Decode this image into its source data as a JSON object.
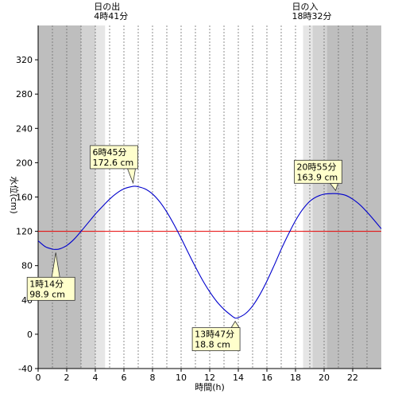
{
  "chart_data": {
    "type": "line",
    "xlabel": "時間(h)",
    "ylabel": "水位(cm)",
    "xlim": [
      0,
      24
    ],
    "ylim": [
      -40,
      360
    ],
    "x_ticks": [
      0,
      2,
      4,
      6,
      8,
      10,
      12,
      14,
      16,
      18,
      20,
      22
    ],
    "y_ticks": [
      -40,
      0,
      40,
      80,
      120,
      160,
      200,
      240,
      280,
      320
    ],
    "grid": {
      "vertical_dotted_every_hour": true,
      "horizontal": false
    },
    "night_shading": [
      {
        "from": 0,
        "to": 3.0,
        "shade": "dark"
      },
      {
        "from": 3.0,
        "to": 4.0,
        "shade": "medium"
      },
      {
        "from": 4.0,
        "to": 4.68,
        "shade": "light"
      },
      {
        "from": 18.53,
        "to": 19.2,
        "shade": "light"
      },
      {
        "from": 19.2,
        "to": 20.2,
        "shade": "medium"
      },
      {
        "from": 20.2,
        "to": 24,
        "shade": "dark"
      }
    ],
    "sun_labels": [
      {
        "label": "日の出",
        "time": "4時41分",
        "x": 4.68
      },
      {
        "label": "日の入",
        "time": "18時32分",
        "x": 18.53
      }
    ],
    "reference_line": {
      "y": 120,
      "color": "#e60000"
    },
    "series": [
      {
        "color": "#0000cc",
        "x": [
          0,
          0.5,
          1.0,
          1.233,
          1.5,
          2,
          2.5,
          3,
          3.5,
          4,
          4.5,
          5,
          5.5,
          6,
          6.5,
          6.75,
          7,
          7.5,
          8,
          8.5,
          9,
          9.5,
          10,
          10.5,
          11,
          11.5,
          12,
          12.5,
          13,
          13.5,
          13.783,
          14,
          14.5,
          15,
          15.5,
          16,
          16.5,
          17,
          17.5,
          18,
          18.5,
          19,
          19.5,
          20,
          20.5,
          20.917,
          21.5,
          22,
          22.5,
          23,
          23.5,
          24
        ],
        "y": [
          109,
          102.1,
          99.2,
          98.9,
          99.5,
          103.5,
          110.5,
          120,
          130,
          140,
          149,
          157.5,
          164.5,
          169.5,
          172,
          172.6,
          172,
          169.3,
          163.5,
          154.5,
          142.5,
          128,
          112,
          95,
          78.5,
          63,
          49.5,
          38,
          29,
          22,
          18.8,
          19.4,
          24,
          33,
          46,
          62,
          80,
          99,
          116.5,
          132.5,
          145.5,
          155,
          160.5,
          163.3,
          163.9,
          163.9,
          162,
          157.5,
          151,
          142.5,
          133,
          123
        ]
      }
    ],
    "annotations": [
      {
        "time": "1時14分",
        "value": "98.9 cm",
        "x": 1.233,
        "y": 98.9
      },
      {
        "time": "6時45分",
        "value": "172.6 cm",
        "x": 6.75,
        "y": 172.6
      },
      {
        "time": "13時47分",
        "value": "18.8 cm",
        "x": 13.783,
        "y": 18.8
      },
      {
        "time": "20時55分",
        "value": "163.9 cm",
        "x": 20.917,
        "y": 163.9
      }
    ]
  }
}
